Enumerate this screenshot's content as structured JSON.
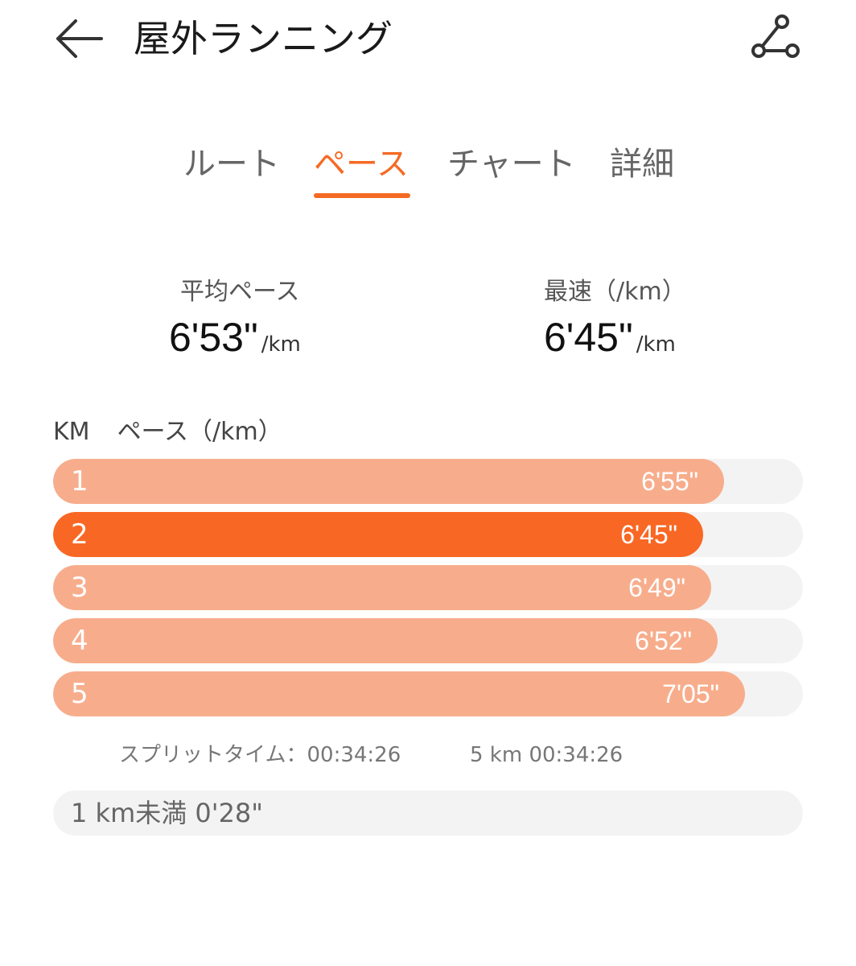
{
  "header": {
    "title": "屋外ランニング",
    "back_icon": "back-arrow-icon",
    "share_icon": "share-nodes-icon"
  },
  "tabs": [
    {
      "label": "ルート",
      "active": false
    },
    {
      "label": "ペース",
      "active": true
    },
    {
      "label": "チャート",
      "active": false
    },
    {
      "label": "詳細",
      "active": false
    }
  ],
  "stats": {
    "avg_pace": {
      "label": "平均ペース",
      "value": "6'53\"",
      "unit": "/km"
    },
    "fastest": {
      "label": "最速（/km）",
      "value": "6'45\"",
      "unit": "/km"
    }
  },
  "table": {
    "col_km": "KM",
    "col_pace": "ペース（/km）",
    "splits": [
      {
        "km": "1",
        "pace": "6'55\"",
        "seconds": 415,
        "fastest": false
      },
      {
        "km": "2",
        "pace": "6'45\"",
        "seconds": 405,
        "fastest": true
      },
      {
        "km": "3",
        "pace": "6'49\"",
        "seconds": 409,
        "fastest": false
      },
      {
        "km": "4",
        "pace": "6'52\"",
        "seconds": 412,
        "fastest": false
      },
      {
        "km": "5",
        "pace": "7'05\"",
        "seconds": 425,
        "fastest": false
      }
    ],
    "split_time": "スプリットタイム：00:34:26",
    "split_total": "5 km 00:34:26",
    "remainder": "1 km未満 0'28\""
  },
  "colors": {
    "accent": "#f56a24",
    "bar": "#f7ad8c",
    "bar_fastest": "#f86824",
    "track": "#f3f3f3"
  }
}
